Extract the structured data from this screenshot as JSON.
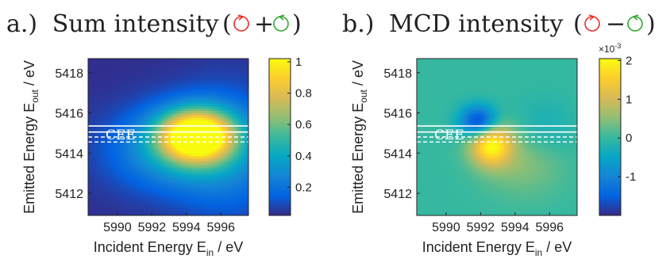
{
  "colors": {
    "rcp": "#e8302a",
    "lcp": "#2fa82f",
    "guide": "#ffffff",
    "text": "#222222"
  },
  "chart_data": [
    {
      "id": "a",
      "type": "heatmap",
      "panel_label": "a.)",
      "title": "Sum intensity",
      "operator": "+",
      "xlabel": {
        "main": "Incident Energy E",
        "sub": "in",
        "unit": " / eV"
      },
      "ylabel": {
        "main": "Emitted Energy E",
        "sub": "out",
        "unit": " / eV"
      },
      "xlim": [
        5988.3,
        5997.6
      ],
      "ylim": [
        5410.9,
        5418.7
      ],
      "x_ticks": [
        5990,
        5992,
        5994,
        5996
      ],
      "y_ticks": [
        5412,
        5414,
        5416,
        5418
      ],
      "colorbar": {
        "min": 0.02,
        "max": 1.02,
        "ticks": [
          0.2,
          0.4,
          0.6,
          0.8,
          1
        ],
        "tick_labels": [
          "0.2",
          "0.4",
          "0.6",
          "0.8",
          "1"
        ],
        "exponent": ""
      },
      "cee_label": "CEE",
      "cee_solid": [
        5415.05,
        5415.35
      ],
      "cee_dashed": [
        5414.55,
        5414.8
      ],
      "features": [
        {
          "x": 5994.6,
          "y": 5414.9,
          "amplitude": 1.0,
          "sigma_x": 1.5,
          "sigma_y": 0.9
        },
        {
          "x": 5993.5,
          "y": 5414.2,
          "amplitude": 0.35,
          "sigma_x": 2.6,
          "sigma_y": 1.4
        },
        {
          "x": 5996.5,
          "y": 5414.0,
          "amplitude": 0.18,
          "sigma_x": 2.0,
          "sigma_y": 2.2
        }
      ],
      "baseline": 0.03
    },
    {
      "id": "b",
      "type": "heatmap",
      "panel_label": "b.)",
      "title": "MCD intensity",
      "operator": "−",
      "xlabel": {
        "main": "Incident Energy E",
        "sub": "in",
        "unit": " / eV"
      },
      "ylabel": {
        "main": "Emitted Energy E",
        "sub": "out",
        "unit": " / eV"
      },
      "xlim": [
        5988.3,
        5997.6
      ],
      "ylim": [
        5410.9,
        5418.7
      ],
      "x_ticks": [
        5990,
        5992,
        5994,
        5996
      ],
      "y_ticks": [
        5412,
        5414,
        5416,
        5418
      ],
      "colorbar": {
        "min": -2.0,
        "max": 2.05,
        "ticks": [
          -1,
          0,
          1,
          2
        ],
        "tick_labels": [
          "-1",
          "0",
          "1",
          "2"
        ],
        "exponent": "×10-3"
      },
      "cee_label": "CEE",
      "cee_solid": [
        5415.05,
        5415.35
      ],
      "cee_dashed": [
        5414.55,
        5414.8
      ],
      "features": [
        {
          "x": 5992.6,
          "y": 5414.45,
          "amplitude": 2.0,
          "sigma_x": 0.85,
          "sigma_y": 0.75
        },
        {
          "x": 5991.9,
          "y": 5415.55,
          "amplitude": -2.0,
          "sigma_x": 0.75,
          "sigma_y": 0.55
        },
        {
          "x": 5994.5,
          "y": 5413.6,
          "amplitude": 0.5,
          "sigma_x": 1.6,
          "sigma_y": 1.2
        },
        {
          "x": 5995.6,
          "y": 5415.2,
          "amplitude": -0.35,
          "sigma_x": 1.3,
          "sigma_y": 1.0
        }
      ],
      "baseline": 0.0
    }
  ]
}
